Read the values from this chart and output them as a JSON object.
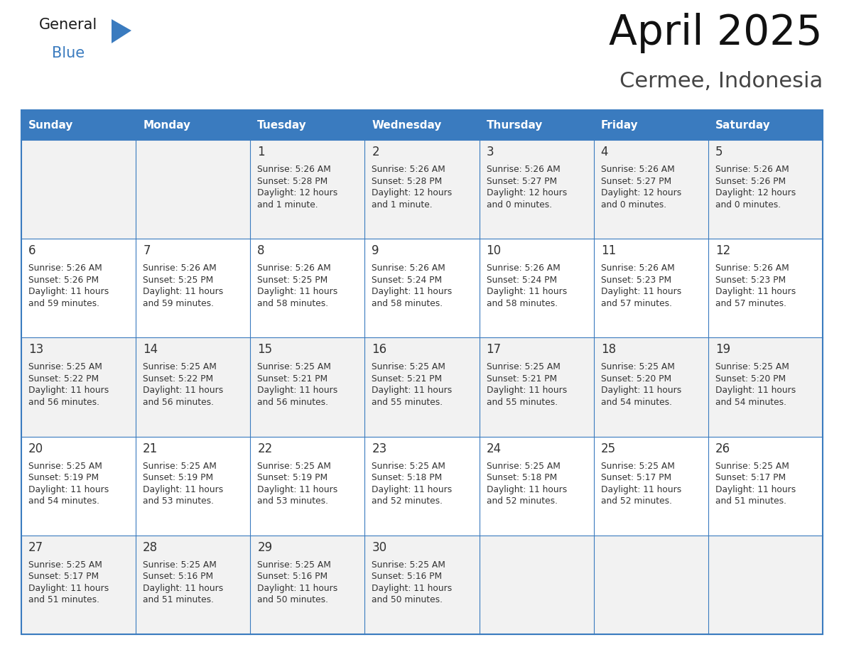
{
  "title": "April 2025",
  "subtitle": "Cermee, Indonesia",
  "header_bg_color": "#3a7bbf",
  "header_text_color": "#ffffff",
  "day_names": [
    "Sunday",
    "Monday",
    "Tuesday",
    "Wednesday",
    "Thursday",
    "Friday",
    "Saturday"
  ],
  "cell_bg_light": "#f2f2f2",
  "cell_bg_white": "#ffffff",
  "border_color": "#3a7bbf",
  "text_color": "#333333",
  "days": [
    {
      "date": 1,
      "col": 2,
      "row": 0,
      "sunrise": "5:26 AM",
      "sunset": "5:28 PM",
      "daylight": "12 hours and 1 minute."
    },
    {
      "date": 2,
      "col": 3,
      "row": 0,
      "sunrise": "5:26 AM",
      "sunset": "5:28 PM",
      "daylight": "12 hours and 1 minute."
    },
    {
      "date": 3,
      "col": 4,
      "row": 0,
      "sunrise": "5:26 AM",
      "sunset": "5:27 PM",
      "daylight": "12 hours and 0 minutes."
    },
    {
      "date": 4,
      "col": 5,
      "row": 0,
      "sunrise": "5:26 AM",
      "sunset": "5:27 PM",
      "daylight": "12 hours and 0 minutes."
    },
    {
      "date": 5,
      "col": 6,
      "row": 0,
      "sunrise": "5:26 AM",
      "sunset": "5:26 PM",
      "daylight": "12 hours and 0 minutes."
    },
    {
      "date": 6,
      "col": 0,
      "row": 1,
      "sunrise": "5:26 AM",
      "sunset": "5:26 PM",
      "daylight": "11 hours and 59 minutes."
    },
    {
      "date": 7,
      "col": 1,
      "row": 1,
      "sunrise": "5:26 AM",
      "sunset": "5:25 PM",
      "daylight": "11 hours and 59 minutes."
    },
    {
      "date": 8,
      "col": 2,
      "row": 1,
      "sunrise": "5:26 AM",
      "sunset": "5:25 PM",
      "daylight": "11 hours and 58 minutes."
    },
    {
      "date": 9,
      "col": 3,
      "row": 1,
      "sunrise": "5:26 AM",
      "sunset": "5:24 PM",
      "daylight": "11 hours and 58 minutes."
    },
    {
      "date": 10,
      "col": 4,
      "row": 1,
      "sunrise": "5:26 AM",
      "sunset": "5:24 PM",
      "daylight": "11 hours and 58 minutes."
    },
    {
      "date": 11,
      "col": 5,
      "row": 1,
      "sunrise": "5:26 AM",
      "sunset": "5:23 PM",
      "daylight": "11 hours and 57 minutes."
    },
    {
      "date": 12,
      "col": 6,
      "row": 1,
      "sunrise": "5:26 AM",
      "sunset": "5:23 PM",
      "daylight": "11 hours and 57 minutes."
    },
    {
      "date": 13,
      "col": 0,
      "row": 2,
      "sunrise": "5:25 AM",
      "sunset": "5:22 PM",
      "daylight": "11 hours and 56 minutes."
    },
    {
      "date": 14,
      "col": 1,
      "row": 2,
      "sunrise": "5:25 AM",
      "sunset": "5:22 PM",
      "daylight": "11 hours and 56 minutes."
    },
    {
      "date": 15,
      "col": 2,
      "row": 2,
      "sunrise": "5:25 AM",
      "sunset": "5:21 PM",
      "daylight": "11 hours and 56 minutes."
    },
    {
      "date": 16,
      "col": 3,
      "row": 2,
      "sunrise": "5:25 AM",
      "sunset": "5:21 PM",
      "daylight": "11 hours and 55 minutes."
    },
    {
      "date": 17,
      "col": 4,
      "row": 2,
      "sunrise": "5:25 AM",
      "sunset": "5:21 PM",
      "daylight": "11 hours and 55 minutes."
    },
    {
      "date": 18,
      "col": 5,
      "row": 2,
      "sunrise": "5:25 AM",
      "sunset": "5:20 PM",
      "daylight": "11 hours and 54 minutes."
    },
    {
      "date": 19,
      "col": 6,
      "row": 2,
      "sunrise": "5:25 AM",
      "sunset": "5:20 PM",
      "daylight": "11 hours and 54 minutes."
    },
    {
      "date": 20,
      "col": 0,
      "row": 3,
      "sunrise": "5:25 AM",
      "sunset": "5:19 PM",
      "daylight": "11 hours and 54 minutes."
    },
    {
      "date": 21,
      "col": 1,
      "row": 3,
      "sunrise": "5:25 AM",
      "sunset": "5:19 PM",
      "daylight": "11 hours and 53 minutes."
    },
    {
      "date": 22,
      "col": 2,
      "row": 3,
      "sunrise": "5:25 AM",
      "sunset": "5:19 PM",
      "daylight": "11 hours and 53 minutes."
    },
    {
      "date": 23,
      "col": 3,
      "row": 3,
      "sunrise": "5:25 AM",
      "sunset": "5:18 PM",
      "daylight": "11 hours and 52 minutes."
    },
    {
      "date": 24,
      "col": 4,
      "row": 3,
      "sunrise": "5:25 AM",
      "sunset": "5:18 PM",
      "daylight": "11 hours and 52 minutes."
    },
    {
      "date": 25,
      "col": 5,
      "row": 3,
      "sunrise": "5:25 AM",
      "sunset": "5:17 PM",
      "daylight": "11 hours and 52 minutes."
    },
    {
      "date": 26,
      "col": 6,
      "row": 3,
      "sunrise": "5:25 AM",
      "sunset": "5:17 PM",
      "daylight": "11 hours and 51 minutes."
    },
    {
      "date": 27,
      "col": 0,
      "row": 4,
      "sunrise": "5:25 AM",
      "sunset": "5:17 PM",
      "daylight": "11 hours and 51 minutes."
    },
    {
      "date": 28,
      "col": 1,
      "row": 4,
      "sunrise": "5:25 AM",
      "sunset": "5:16 PM",
      "daylight": "11 hours and 51 minutes."
    },
    {
      "date": 29,
      "col": 2,
      "row": 4,
      "sunrise": "5:25 AM",
      "sunset": "5:16 PM",
      "daylight": "11 hours and 50 minutes."
    },
    {
      "date": 30,
      "col": 3,
      "row": 4,
      "sunrise": "5:25 AM",
      "sunset": "5:16 PM",
      "daylight": "11 hours and 50 minutes."
    }
  ],
  "logo_general_color": "#1a1a1a",
  "logo_blue_color": "#3a7bbf",
  "logo_triangle_color": "#3a7bbf",
  "fig_width": 11.88,
  "fig_height": 9.18,
  "dpi": 100
}
